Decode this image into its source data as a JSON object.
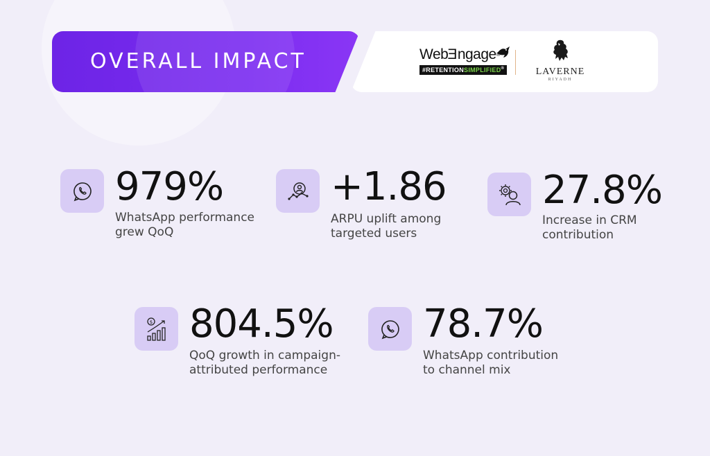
{
  "header": {
    "title": "OVERALL IMPACT"
  },
  "logos": {
    "webengage": {
      "word_prefix": "Web",
      "word_suffix": "ngage",
      "trademark": "®",
      "tagline_prefix": "#RETENTION",
      "tagline_suffix": "SIMPLIFIED",
      "tagline_trademark": "®"
    },
    "laverne": {
      "name": "LAVERNE",
      "city": "RIYADH"
    }
  },
  "stats": [
    {
      "value": "979%",
      "label": "WhatsApp performance\ngrew QoQ",
      "icon": "whatsapp-icon"
    },
    {
      "value": "+1.86",
      "label": "ARPU uplift among\ntargeted users",
      "icon": "user-growth-icon"
    },
    {
      "value": "27.8%",
      "label": "Increase in CRM\ncontribution",
      "icon": "user-settings-icon"
    },
    {
      "value": "804.5%",
      "label": "QoQ growth in campaign-\nattributed performance",
      "icon": "revenue-chart-icon"
    },
    {
      "value": "78.7%",
      "label": "WhatsApp contribution\nto channel mix",
      "icon": "whatsapp-icon"
    }
  ],
  "colors": {
    "background": "#f1eef9",
    "banner": "#7a2cf0",
    "icon_tile": "#d8ccf5"
  }
}
